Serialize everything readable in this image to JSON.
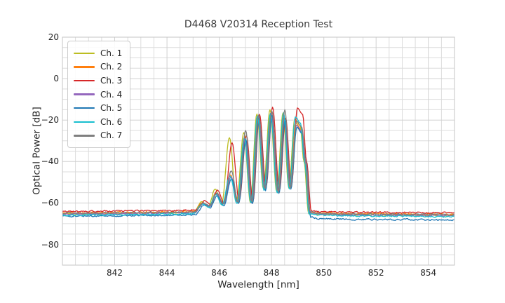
{
  "chart_data": {
    "type": "line",
    "title": "D4468 V20314 Reception Test",
    "xlabel": "Wavelength [nm]",
    "ylabel": "Optical Power [dB]",
    "xlim": [
      840,
      855
    ],
    "ylim": [
      -90,
      20
    ],
    "xticks": [
      842,
      844,
      846,
      848,
      850,
      852,
      854
    ],
    "xtick_labels": [
      "842",
      "844",
      "846",
      "848",
      "850",
      "852",
      "854"
    ],
    "yticks": [
      20,
      0,
      -20,
      -40,
      -60,
      -80
    ],
    "ytick_labels": [
      "20",
      "0",
      "−20",
      "−40",
      "−60",
      "−80"
    ],
    "x_minor_step_nm": 0.5,
    "y_minor_step_db": 5,
    "grid": true,
    "legend_position": "upper-left",
    "lobes": {
      "centers_nm": [
        845.4,
        845.9,
        846.45,
        847.0,
        847.5,
        848.0,
        848.5,
        848.95
      ],
      "null_centers_nm": [
        845.63,
        846.15,
        846.72,
        847.25,
        847.75,
        848.26,
        848.72
      ],
      "null_depths_db": [
        -61.5,
        -60.5,
        -59.5,
        -59.5,
        -53.0,
        -54.5,
        -52.5
      ]
    },
    "cutoff": {
      "shoulder_nm": 849.15,
      "edge_nm": 849.3,
      "edge_level_db": -40,
      "floor_nm": 849.48
    },
    "series": [
      {
        "name": "Ch. 1",
        "color": "#bcbd22",
        "x_offset_nm": -0.06,
        "baseline_left_db": -65.3,
        "baseline_right_db": -65.9,
        "lobe_peaks_db": [
          -59.5,
          -53.5,
          -28.5,
          -26.0,
          -17.0,
          -15.0,
          -16.5,
          -19.5
        ]
      },
      {
        "name": "Ch. 2",
        "color": "#ff7f0e",
        "x_offset_nm": -0.02,
        "baseline_left_db": -64.8,
        "baseline_right_db": -65.3,
        "lobe_peaks_db": [
          -60.0,
          -55.0,
          -46.5,
          -28.0,
          -18.0,
          -16.3,
          -18.5,
          -21.5
        ]
      },
      {
        "name": "Ch. 3",
        "color": "#d62728",
        "x_offset_nm": 0.04,
        "baseline_left_db": -64.1,
        "baseline_right_db": -64.6,
        "lobe_peaks_db": [
          -59.0,
          -53.8,
          -31.0,
          -27.5,
          -17.2,
          -13.8,
          -19.0,
          -14.2
        ]
      },
      {
        "name": "Ch. 4",
        "color": "#9467bd",
        "x_offset_nm": 0.0,
        "baseline_left_db": -65.4,
        "baseline_right_db": -65.9,
        "lobe_peaks_db": [
          -60.5,
          -55.5,
          -47.5,
          -29.0,
          -18.5,
          -17.3,
          -19.5,
          -22.5
        ]
      },
      {
        "name": "Ch. 5",
        "color": "#1f77b4",
        "x_offset_nm": 0.02,
        "baseline_left_db": -66.4,
        "baseline_right_db": -68.0,
        "lobe_peaks_db": [
          -61.0,
          -56.5,
          -48.5,
          -29.5,
          -19.0,
          -17.8,
          -20.0,
          -23.5
        ]
      },
      {
        "name": "Ch. 6",
        "color": "#17becf",
        "x_offset_nm": -0.04,
        "baseline_left_db": -65.9,
        "baseline_right_db": -66.4,
        "lobe_peaks_db": [
          -60.5,
          -56.0,
          -47.0,
          -28.5,
          -18.0,
          -16.8,
          -16.5,
          -18.5
        ]
      },
      {
        "name": "Ch. 7",
        "color": "#7f7f7f",
        "x_offset_nm": 0.01,
        "baseline_left_db": -65.0,
        "baseline_right_db": -65.5,
        "lobe_peaks_db": [
          -60.0,
          -55.0,
          -44.5,
          -25.0,
          -17.5,
          -15.5,
          -15.0,
          -20.5
        ]
      }
    ]
  },
  "style_colors": {
    "grid_minor": "#dcdcdc",
    "grid_major": "#d0d0d0",
    "spine": "#c6c6c6",
    "text": "#262626",
    "background": "#ffffff"
  }
}
